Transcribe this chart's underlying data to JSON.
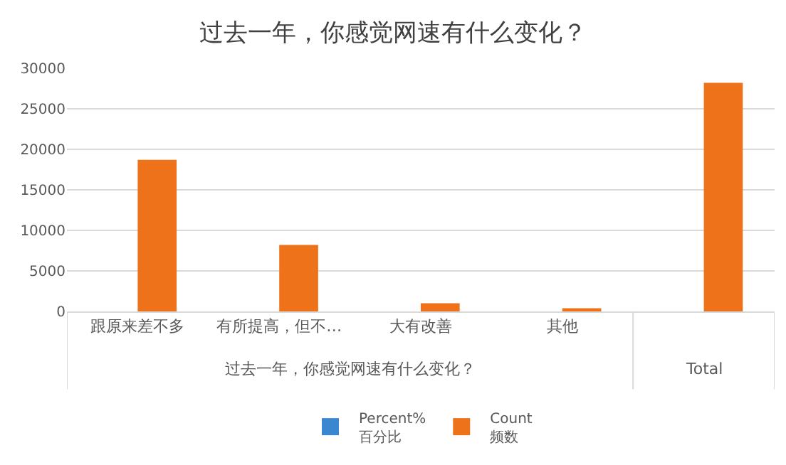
{
  "chart_data": {
    "type": "bar",
    "title": "过去一年，你感觉网速有什么变化？",
    "categories": [
      "跟原来差不多",
      "有所提高，但不…",
      "大有改善",
      "其他",
      null
    ],
    "series": [
      {
        "name": "Percent%\n百分比",
        "color": "#3a87d0",
        "values": [
          null,
          null,
          null,
          null,
          null
        ]
      },
      {
        "name": "Count\n频数",
        "color": "#ee7219",
        "values": [
          18700,
          8200,
          1000,
          400,
          28200
        ]
      }
    ],
    "ylim": [
      0,
      30000
    ],
    "yticks": [
      0,
      5000,
      10000,
      15000,
      20000,
      25000,
      30000
    ],
    "grid": "y",
    "legend": "bottom",
    "annotations": [
      "过去一年，你感觉网速有什么变化？",
      "Total"
    ]
  }
}
